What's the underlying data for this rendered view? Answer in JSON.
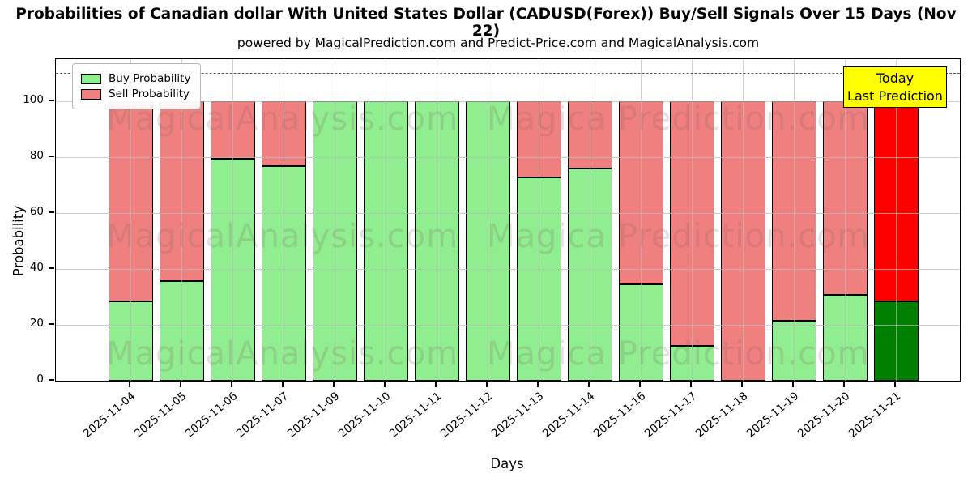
{
  "chart_data": {
    "type": "bar",
    "stacked": true,
    "title": "Probabilities of Canadian dollar With United States Dollar (CADUSD(Forex)) Buy/Sell Signals Over 15 Days (Nov 22)",
    "subtitle": "powered by MagicalPrediction.com and Predict-Price.com and MagicalAnalysis.com",
    "xlabel": "Days",
    "ylabel": "Probability",
    "ylim": [
      0,
      115
    ],
    "yticks": [
      0,
      20,
      40,
      60,
      80,
      100
    ],
    "dashed_guide_y": 110,
    "grid": true,
    "categories": [
      "2025-11-04",
      "2025-11-05",
      "2025-11-06",
      "2025-11-07",
      "2025-11-09",
      "2025-11-10",
      "2025-11-11",
      "2025-11-12",
      "2025-11-13",
      "2025-11-14",
      "2025-11-16",
      "2025-11-17",
      "2025-11-18",
      "2025-11-19",
      "2025-11-20",
      "2025-11-21"
    ],
    "series": [
      {
        "name": "Buy Probability",
        "color": "#90EE90",
        "values": [
          28.5,
          35.7,
          79.3,
          76.8,
          100,
          100,
          100,
          100,
          72.7,
          75.9,
          34.5,
          12.6,
          0,
          21.3,
          30.8,
          28.4
        ]
      },
      {
        "name": "Sell Probability",
        "color": "#F08080",
        "values": [
          71.5,
          64.3,
          20.7,
          23.2,
          0,
          0,
          0,
          0,
          27.3,
          24.1,
          65.5,
          87.4,
          100,
          78.7,
          69.2,
          71.6
        ]
      }
    ],
    "today_index": 15,
    "today_colors": {
      "buy": "#008000",
      "sell": "#FF0000"
    },
    "legend": {
      "position": "upper-left"
    },
    "annotation_box": {
      "line1": "Today",
      "line2": "Last Prediction",
      "bg_color": "#FFFF00"
    },
    "watermarks": {
      "left_text": "MagicalAnalysis.com",
      "right_text": "Magica Prediction.com"
    }
  }
}
